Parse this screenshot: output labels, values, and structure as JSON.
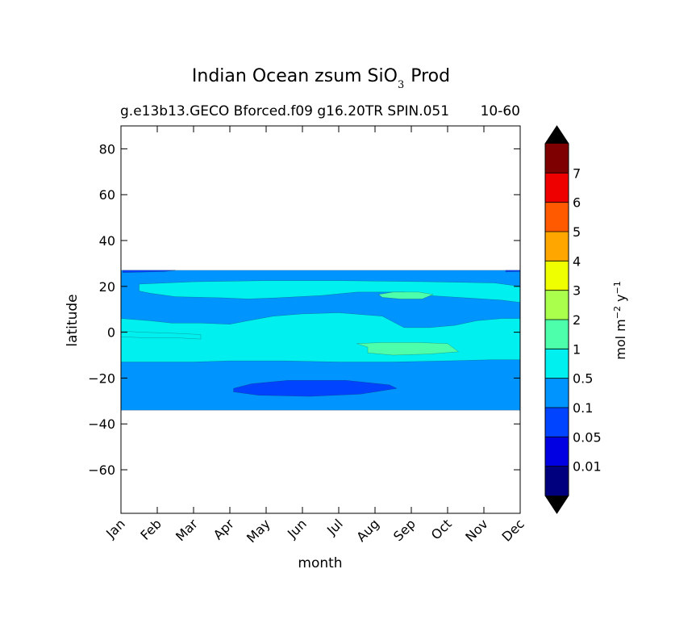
{
  "chart_data": {
    "type": "heatmap",
    "title_main": "Indian Ocean zsum SiO",
    "title_sub": "3",
    "title_end": "Prod",
    "subtitle_left": "g.e13b13.GECO Bforced.f09 g16.20TR SPIN.051",
    "subtitle_right": "10-60",
    "xlabel": "month",
    "ylabel": "latitude",
    "x_ticks": [
      "Jan",
      "Feb",
      "Mar",
      "Apr",
      "May",
      "Jun",
      "Jul",
      "Aug",
      "Sep",
      "Oct",
      "Nov",
      "Dec"
    ],
    "xlim": [
      1,
      12
    ],
    "y_ticks": [
      80,
      60,
      40,
      20,
      0,
      -20,
      -40,
      -60
    ],
    "y_tick_labels": [
      "80",
      "60",
      "40",
      "20",
      "0",
      "−20",
      "−40",
      "−60"
    ],
    "ylim": [
      -79,
      90
    ],
    "data_lat_range": [
      -34,
      27
    ],
    "colorbar": {
      "label_main": "mol m",
      "label_exp1": "−2",
      "label_mid": " y",
      "label_exp2": "−1",
      "levels": [
        "0.01",
        "0.05",
        "0.1",
        "0.5",
        "1",
        "2",
        "3",
        "4",
        "5",
        "6",
        "7"
      ],
      "colors": [
        "#00007f",
        "#0000e3",
        "#0044ff",
        "#0094ff",
        "#00f0f0",
        "#4dffaa",
        "#aaff4d",
        "#f0ff00",
        "#ffa700",
        "#ff5a00",
        "#ee0000",
        "#7f0000"
      ],
      "extend_low_color": "#000000",
      "extend_high_color": "#000000"
    },
    "regions": [
      {
        "name": "background",
        "level": "0.1-0.5",
        "path": [
          [
            1,
            27
          ],
          [
            12,
            27
          ],
          [
            12,
            -34
          ],
          [
            1,
            -34
          ]
        ]
      },
      {
        "name": "equatorial band",
        "level": "0.5-1",
        "path": [
          [
            1,
            6
          ],
          [
            1.8,
            5
          ],
          [
            2.4,
            4
          ],
          [
            3.2,
            4
          ],
          [
            4.0,
            3.5
          ],
          [
            4.5,
            5
          ],
          [
            5.2,
            7
          ],
          [
            6.0,
            8
          ],
          [
            7.0,
            8.5
          ],
          [
            8.2,
            7
          ],
          [
            8.8,
            2
          ],
          [
            9.5,
            2
          ],
          [
            10.2,
            3
          ],
          [
            10.8,
            5
          ],
          [
            11.5,
            6
          ],
          [
            12,
            6
          ],
          [
            12,
            -12
          ],
          [
            11.2,
            -12
          ],
          [
            10.0,
            -12.5
          ],
          [
            8.5,
            -13
          ],
          [
            7.0,
            -13
          ],
          [
            5.5,
            -12.5
          ],
          [
            4.0,
            -12.5
          ],
          [
            3.0,
            -13
          ],
          [
            1.8,
            -13
          ],
          [
            1,
            -13
          ]
        ]
      },
      {
        "name": "northern band",
        "level": "0.5-1",
        "path": [
          [
            1.5,
            21
          ],
          [
            3.0,
            22
          ],
          [
            5.0,
            22.5
          ],
          [
            7.0,
            22.5
          ],
          [
            9.5,
            22
          ],
          [
            11.3,
            21.5
          ],
          [
            12,
            20
          ],
          [
            12,
            13
          ],
          [
            11.5,
            14
          ],
          [
            10.5,
            15
          ],
          [
            9.5,
            16
          ],
          [
            8.8,
            17.5
          ],
          [
            7.5,
            17.5
          ],
          [
            6.5,
            16
          ],
          [
            5.3,
            15
          ],
          [
            4.5,
            14.5
          ],
          [
            3.8,
            15
          ],
          [
            2.5,
            15.5
          ],
          [
            1.8,
            17
          ],
          [
            1.5,
            18
          ]
        ]
      },
      {
        "name": "southern cyan lobe",
        "level": "0.5-1",
        "path": [
          [
            1,
            -2
          ],
          [
            1.8,
            -2.5
          ],
          [
            2.6,
            -2.5
          ],
          [
            3.2,
            -3
          ],
          [
            3.2,
            -1
          ],
          [
            2.5,
            -0.5
          ],
          [
            1.6,
            0
          ],
          [
            1,
            0.5
          ]
        ]
      },
      {
        "name": "sep high (north)",
        "level": "1-2",
        "path": [
          [
            8.1,
            16.5
          ],
          [
            8.5,
            17.5
          ],
          [
            9.2,
            17.5
          ],
          [
            9.6,
            16.5
          ],
          [
            9.3,
            14.5
          ],
          [
            8.7,
            14.5
          ],
          [
            8.2,
            15.2
          ]
        ]
      },
      {
        "name": "aug-sep high (equatorial)",
        "level": "1-2",
        "path": [
          [
            7.5,
            -5
          ],
          [
            8.2,
            -4.5
          ],
          [
            9.2,
            -4.5
          ],
          [
            10.0,
            -5
          ],
          [
            10.3,
            -8.5
          ],
          [
            9.5,
            -9.5
          ],
          [
            8.5,
            -10
          ],
          [
            7.8,
            -9
          ],
          [
            7.8,
            -6.5
          ]
        ]
      },
      {
        "name": "southern low",
        "level": "0.05-0.1",
        "path": [
          [
            4.1,
            -24.5
          ],
          [
            4.6,
            -22.5
          ],
          [
            5.6,
            -21
          ],
          [
            7.2,
            -21
          ],
          [
            8.4,
            -23
          ],
          [
            8.6,
            -24.5
          ],
          [
            7.6,
            -27
          ],
          [
            6.2,
            -28
          ],
          [
            4.8,
            -27.5
          ],
          [
            4.1,
            -26
          ]
        ]
      },
      {
        "name": "northern edge low",
        "level": "0.05-0.1",
        "path": [
          [
            1.05,
            27
          ],
          [
            2.5,
            27
          ],
          [
            2.2,
            26.5
          ],
          [
            1.05,
            26
          ]
        ]
      },
      {
        "name": "dec edge low",
        "level": "0.05-0.1",
        "path": [
          [
            11.6,
            27
          ],
          [
            12,
            27
          ],
          [
            12,
            26.5
          ],
          [
            11.6,
            26.3
          ]
        ]
      }
    ]
  }
}
